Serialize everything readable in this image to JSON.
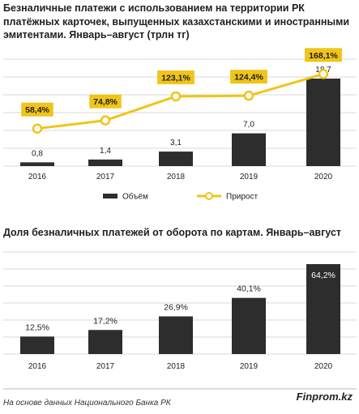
{
  "colors": {
    "bar": "#2d2d2d",
    "line": "#f0c419",
    "label_bg": "#f0c419",
    "grid": "#d9d9d9"
  },
  "chart_data": [
    {
      "type": "bar",
      "title": "Безналичные платежи с использованием на территории РК платёжных карточек, выпущенных казахстанскими и иностранными эмитентами. Январь–август (трлн тг)",
      "categories": [
        "2016",
        "2017",
        "2018",
        "2019",
        "2020"
      ],
      "series": [
        {
          "name": "Объём",
          "type": "bar",
          "values": [
            0.8,
            1.4,
            3.1,
            7.0,
            18.7
          ],
          "labels": [
            "0,8",
            "1,4",
            "3,1",
            "7,0",
            "18,7"
          ]
        },
        {
          "name": "Прирост",
          "type": "line",
          "values": [
            58.4,
            74.8,
            123.1,
            124.4,
            168.1
          ],
          "labels": [
            "58,4%",
            "74,8%",
            "123,1%",
            "124,4%",
            "168,1%"
          ]
        }
      ],
      "legend_placement": "bottom",
      "grid": true
    },
    {
      "type": "bar",
      "title": "Доля безналичных платежей от оборота по картам. Январь–август",
      "categories": [
        "2016",
        "2017",
        "2018",
        "2019",
        "2020"
      ],
      "series": [
        {
          "values": [
            12.5,
            17.2,
            26.9,
            40.1,
            64.2
          ],
          "labels": [
            "12,5%",
            "17,2%",
            "26,9%",
            "40,1%",
            "64,2%"
          ]
        }
      ],
      "grid": true
    }
  ],
  "footer": {
    "source": "На основе данных Национального Банка РК",
    "brand": "Finprom.kz"
  }
}
